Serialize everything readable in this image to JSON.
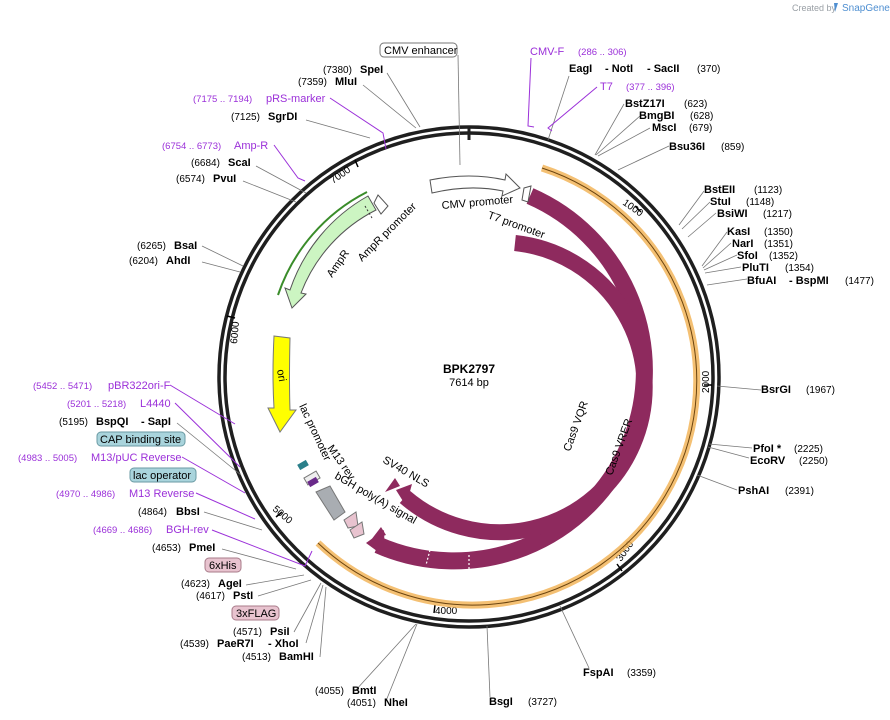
{
  "credit": {
    "created_by": "Created by",
    "brand": "SnapGene"
  },
  "plasmid": {
    "name": "BPK2797",
    "size_label": "7614 bp",
    "length": 7614
  },
  "ruler_ticks": [
    "1000",
    "2000",
    "3000",
    "4000",
    "5000",
    "6000",
    "7000"
  ],
  "features": {
    "cas9_vqr": "Cas9 VQR",
    "cas9_vrer": "Cas9 VRER",
    "sv40_nls": "SV40 NLS",
    "bgh_polya": "bGH poly(A) signal",
    "m13_rev": "M13 rev",
    "lac_promoter": "lac promoter",
    "ori": "ori",
    "ampr": "AmpR",
    "ampr_promoter": "AmpR promoter",
    "cmv_promoter": "CMV promoter",
    "t7_promoter": "T7 promoter"
  },
  "box_labels": {
    "cmv_enhancer": "CMV enhancer",
    "cap_binding_site": "CAP binding site",
    "lac_operator": "lac operator",
    "his6": "6xHis",
    "flag3": "3xFLAG"
  },
  "primers": {
    "cmv_f": {
      "name": "CMV-F",
      "range": "(286 .. 306)"
    },
    "t7": {
      "name": "T7",
      "range": "(377 .. 396)"
    },
    "prs_marker": {
      "name": "pRS-marker",
      "range": "(7175 .. 7194)"
    },
    "amp_r": {
      "name": "Amp-R",
      "range": "(6754 .. 6773)"
    },
    "pbr322ori_f": {
      "name": "pBR322ori-F",
      "range": "(5452 .. 5471)"
    },
    "l4440": {
      "name": "L4440",
      "range": "(5201 .. 5218)"
    },
    "m13_puc_reverse": {
      "name": "M13/pUC Reverse",
      "range": "(4983 .. 5005)"
    },
    "m13_reverse": {
      "name": "M13 Reverse",
      "range": "(4970 .. 4986)"
    },
    "bgh_rev": {
      "name": "BGH-rev",
      "range": "(4669 .. 4686)"
    }
  },
  "enzymes": {
    "spei": {
      "name": "SpeI",
      "pos": "(7380)"
    },
    "mlui": {
      "name": "MluI",
      "pos": "(7359)"
    },
    "sgrdi": {
      "name": "SgrDI",
      "pos": "(7125)"
    },
    "scai": {
      "name": "ScaI",
      "pos": "(6684)"
    },
    "pvui": {
      "name": "PvuI",
      "pos": "(6574)"
    },
    "bsai": {
      "name": "BsaI",
      "pos": "(6265)"
    },
    "ahdi": {
      "name": "AhdI",
      "pos": "(6204)"
    },
    "bspqi": {
      "name": "BspQI",
      "pos": "(5195)"
    },
    "sapi": {
      "name": "- SapI"
    },
    "bbsi": {
      "name": "BbsI",
      "pos": "(4864)"
    },
    "pmei": {
      "name": "PmeI",
      "pos": "(4653)"
    },
    "agei": {
      "name": "AgeI",
      "pos": "(4623)"
    },
    "psti": {
      "name": "PstI",
      "pos": "(4617)"
    },
    "psii": {
      "name": "PsiI",
      "pos": "(4571)"
    },
    "paer7i": {
      "name": "PaeR7I",
      "pos": "(4539)"
    },
    "xhoi": {
      "name": "- XhoI"
    },
    "bamhi": {
      "name": "BamHI",
      "pos": "(4513)"
    },
    "bmti": {
      "name": "BmtI",
      "pos": "(4055)"
    },
    "nhei": {
      "name": "NheI",
      "pos": "(4051)"
    },
    "bsgi": {
      "name": "BsgI",
      "pos": "(3727)"
    },
    "fspai": {
      "name": "FspAI",
      "pos": "(3359)"
    },
    "pshai": {
      "name": "PshAI",
      "pos": "(2391)"
    },
    "ecorv": {
      "name": "EcoRV",
      "pos": "(2250)"
    },
    "pfoi": {
      "name": "PfoI *",
      "pos": "(2225)"
    },
    "bsrgi": {
      "name": "BsrGI",
      "pos": "(1967)"
    },
    "bfuai": {
      "name": "BfuAI",
      "pos": "(1477)"
    },
    "bspmi": {
      "name": "- BspMI"
    },
    "pluti": {
      "name": "PluTI",
      "pos": "(1354)"
    },
    "sfoi": {
      "name": "SfoI",
      "pos": "(1352)"
    },
    "nari": {
      "name": "NarI",
      "pos": "(1351)"
    },
    "kasi": {
      "name": "KasI",
      "pos": "(1350)"
    },
    "bsiwi": {
      "name": "BsiWI",
      "pos": "(1217)"
    },
    "stui": {
      "name": "StuI",
      "pos": "(1148)"
    },
    "bsteii": {
      "name": "BstEII",
      "pos": "(1123)"
    },
    "bsu36i": {
      "name": "Bsu36I",
      "pos": "(859)"
    },
    "msci": {
      "name": "MscI",
      "pos": "(679)"
    },
    "bmgbi": {
      "name": "BmgBI",
      "pos": "(628)"
    },
    "bstz17i": {
      "name": "BstZ17I",
      "pos": "(623)"
    },
    "eagi": {
      "name": "EagI"
    },
    "noti": {
      "name": "- NotI"
    },
    "sacii": {
      "name": "- SacII",
      "pos": "(370)"
    }
  },
  "colors": {
    "backbone": "#1f1f1f",
    "cas9": "#8e2a5e",
    "orange_highlight": "#f2b55a",
    "ampr": "#ccf5c2",
    "ori": "#ffff00",
    "primer": "#9b30d9",
    "his_flag_box": "#e8c3cf",
    "cap_lac_box": "#a9d4dc",
    "bgh": "#a9adb2"
  }
}
